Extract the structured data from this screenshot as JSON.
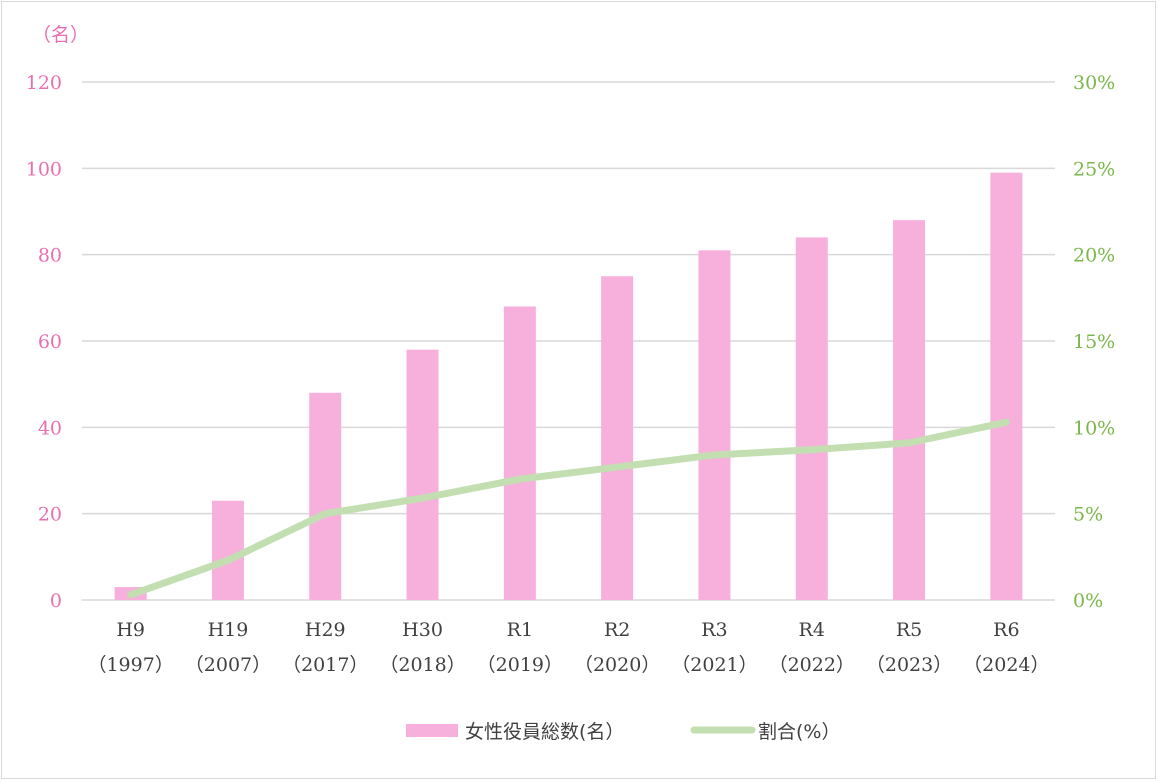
{
  "chart_data": {
    "type": "bar",
    "y_unit_label": "（名）",
    "categories": [
      [
        "H9",
        "（1997）"
      ],
      [
        "H19",
        "（2007）"
      ],
      [
        "H29",
        "（2017）"
      ],
      [
        "H30",
        "（2018）"
      ],
      [
        "R1",
        "（2019）"
      ],
      [
        "R2",
        "（2020）"
      ],
      [
        "R3",
        "（2021）"
      ],
      [
        "R4",
        "（2022）"
      ],
      [
        "R5",
        "（2023）"
      ],
      [
        "R6",
        "（2024）"
      ]
    ],
    "series": [
      {
        "name": "女性役員総数(名）",
        "type": "bar",
        "axis": "left",
        "color": "#f7b0dc",
        "values": [
          3,
          23,
          48,
          58,
          68,
          75,
          81,
          84,
          88,
          99
        ]
      },
      {
        "name": "割合(%）",
        "type": "line",
        "axis": "right",
        "color": "#c3dfb2",
        "values": [
          0.3,
          2.3,
          5.0,
          5.9,
          7.0,
          7.7,
          8.4,
          8.7,
          9.1,
          10.3
        ]
      }
    ],
    "y_left": {
      "min": 0,
      "max": 120,
      "ticks": [
        0,
        20,
        40,
        60,
        80,
        100,
        120
      ],
      "color": "#e86fb0"
    },
    "y_right": {
      "min": 0,
      "max": 30,
      "ticks": [
        0,
        5,
        10,
        15,
        20,
        25,
        30
      ],
      "tick_labels": [
        "0%",
        "5%",
        "10%",
        "15%",
        "20%",
        "25%",
        "30%"
      ],
      "color": "#7ab648"
    },
    "grid": true,
    "legend_position": "bottom"
  }
}
